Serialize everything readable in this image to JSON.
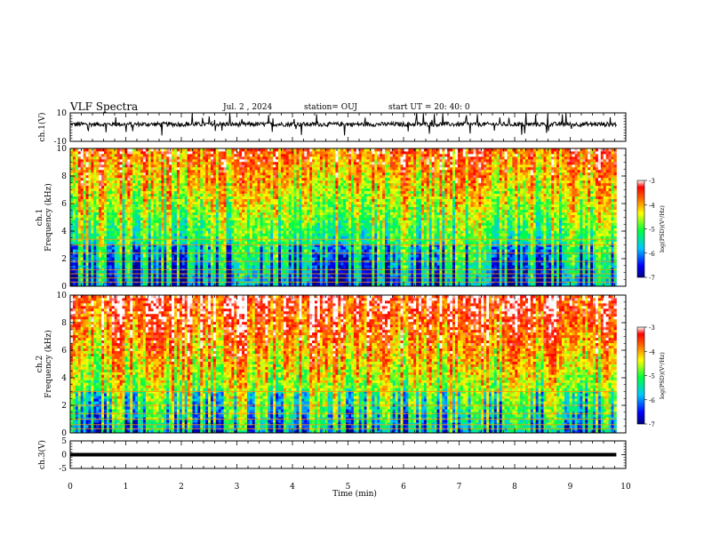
{
  "header": {
    "title": "VLF Spectra",
    "date": "Jul. 2 , 2024",
    "station": "station= OUJ",
    "start_ut": "start UT =  20: 40: 0"
  },
  "chart_data": [
    {
      "type": "line",
      "panel": "ch.1 waveform",
      "ylabel": "ch.1(V)",
      "ylim": [
        -10,
        10
      ],
      "yticks": [
        "10",
        "-10"
      ],
      "baseline": 2,
      "noise_amplitude": 1.5,
      "xlim": [
        0,
        10
      ]
    },
    {
      "type": "heatmap",
      "panel": "ch.1 spectrogram",
      "ylabel": "ch.1\nFrequency (kHz)",
      "ylim": [
        0,
        10
      ],
      "yticks": [
        "0",
        "2",
        "4",
        "6",
        "8",
        "10"
      ],
      "xlim": [
        0,
        10
      ],
      "data_extent_min": 9.83,
      "colorbar": {
        "label": "log(PSD)(V²/Hz)",
        "min": -7,
        "max": -3,
        "ticks": [
          "-3",
          "-4",
          "-5",
          "-6",
          "-7"
        ]
      },
      "tonal_lines_khz": [
        0.3,
        0.6,
        0.9,
        1.2,
        1.8,
        2.4,
        3.0,
        3.4
      ]
    },
    {
      "type": "heatmap",
      "panel": "ch.2 spectrogram",
      "ylabel": "ch.2\nFrequency (kHz)",
      "ylim": [
        0,
        10
      ],
      "yticks": [
        "0",
        "2",
        "4",
        "6",
        "8",
        "10"
      ],
      "xlim": [
        0,
        10
      ],
      "data_extent_min": 9.83,
      "colorbar": {
        "label": "log(PSD)(V²/Hz)",
        "min": -7,
        "max": -3,
        "ticks": [
          "-3",
          "-4",
          "-5",
          "-6",
          "-7"
        ]
      },
      "tonal_lines_khz": [
        0.3,
        0.6,
        1.0,
        1.4,
        2.0,
        3.0
      ]
    },
    {
      "type": "line",
      "panel": "ch.3 waveform",
      "ylabel": "ch.3(V)",
      "ylim": [
        -5,
        5
      ],
      "yticks": [
        "5",
        "0",
        "-5"
      ],
      "baseline": 0,
      "noise_amplitude": 0,
      "xlim": [
        0,
        10
      ],
      "xlabel": "Time (min)",
      "xticks": [
        "0",
        "1",
        "2",
        "3",
        "4",
        "5",
        "6",
        "7",
        "8",
        "9",
        "10"
      ]
    }
  ]
}
